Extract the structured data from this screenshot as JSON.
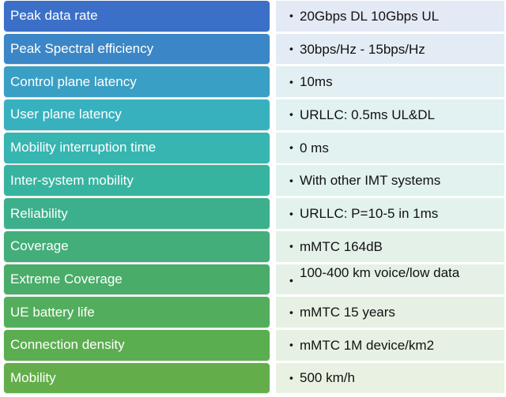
{
  "rows": [
    {
      "label": "Peak data rate",
      "value": "20Gbps DL 10Gbps UL",
      "color": "#3c6fc8",
      "bg": "#e3e9f5"
    },
    {
      "label": "Peak Spectral efficiency",
      "value": "30bps/Hz - 15bps/Hz",
      "color": "#3b86c6",
      "bg": "#e3ecf4"
    },
    {
      "label": "Control plane latency",
      "value": "10ms",
      "color": "#3a9fc4",
      "bg": "#e2eff3"
    },
    {
      "label": "User plane latency",
      "value": "URLLC: 0.5ms UL&DL",
      "color": "#38b1bf",
      "bg": "#e2f1f2"
    },
    {
      "label": "Mobility interruption time",
      "value": "0 ms",
      "color": "#37b5b0",
      "bg": "#e2f2f0"
    },
    {
      "label": "Inter-system mobility",
      "value": "With other IMT systems",
      "color": "#37b4a0",
      "bg": "#e2f2ee"
    },
    {
      "label": "Reliability",
      "value": "URLLC: P=10-5 in 1ms",
      "color": "#3cb08c",
      "bg": "#e3f2ec"
    },
    {
      "label": "Coverage",
      "value": "mMTC 164dB",
      "color": "#43ae79",
      "bg": "#e4f1e9"
    },
    {
      "label": "Extreme Coverage",
      "value": "100-400 km voice/low data",
      "color": "#49ad69",
      "bg": "#e5f1e6"
    },
    {
      "label": "UE battery life",
      "value": "mMTC 15 years",
      "color": "#52ae5c",
      "bg": "#e6f1e4"
    },
    {
      "label": "Connection density",
      "value": "mMTC 1M device/km2",
      "color": "#5bae50",
      "bg": "#e7f1e3"
    },
    {
      "label": "Mobility",
      "value": "500 km/h",
      "color": "#63ae4b",
      "bg": "#e8f1e2"
    }
  ],
  "bullet_glyph": "•"
}
